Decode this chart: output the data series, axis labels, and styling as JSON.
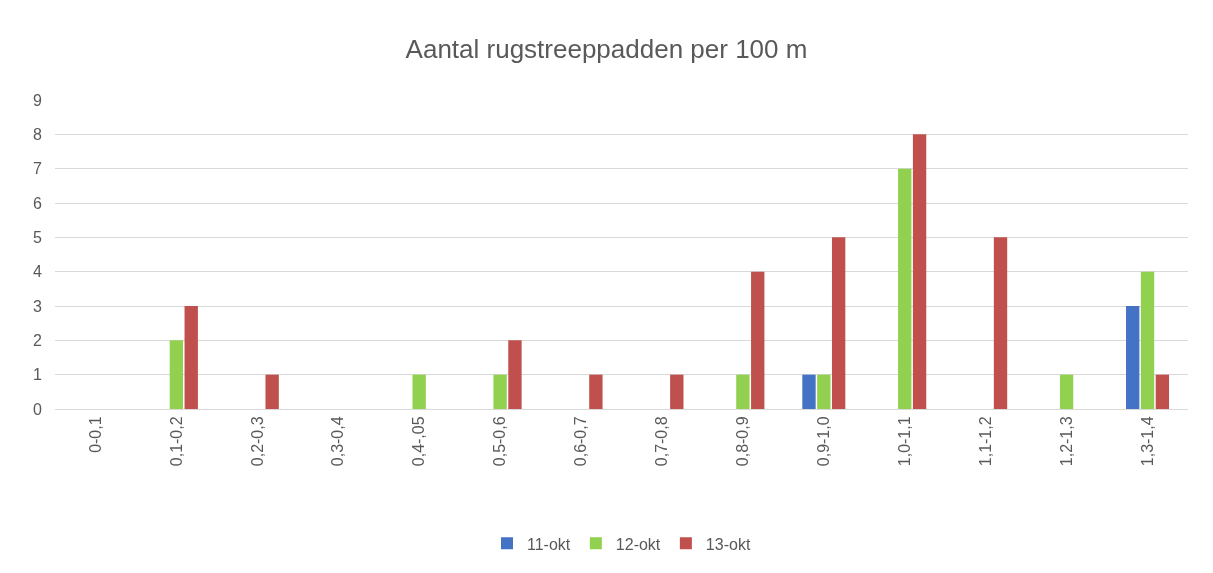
{
  "chart_data": {
    "type": "bar",
    "title": "Aantal rugstreeppadden per 100 m",
    "categories": [
      "0-0,1",
      "0,1-0,2",
      "0,2-0,3",
      "0,3-0,4",
      "0,4-,05",
      "0,5-0,6",
      "0,6-0,7",
      "0,7-0,8",
      "0,8-0,9",
      "0,9-1,0",
      "1,0-1,1",
      "1,1-1,2",
      "1,2-1,3",
      "1,3-1,4"
    ],
    "series": [
      {
        "name": "11-okt",
        "color": "#4472c4",
        "values": [
          null,
          null,
          null,
          null,
          null,
          null,
          null,
          null,
          null,
          1,
          null,
          null,
          null,
          3
        ]
      },
      {
        "name": "12-okt",
        "color": "#92d050",
        "values": [
          null,
          2,
          null,
          null,
          1,
          1,
          null,
          null,
          1,
          1,
          7,
          null,
          1,
          4
        ]
      },
      {
        "name": "13-okt",
        "color": "#c0504d",
        "values": [
          null,
          3,
          1,
          null,
          null,
          2,
          1,
          1,
          4,
          5,
          8,
          5,
          null,
          1
        ]
      }
    ],
    "ylim": [
      0,
      9
    ],
    "yticks": [
      0,
      1,
      2,
      3,
      4,
      5,
      6,
      7,
      8,
      9
    ],
    "grid": "y",
    "legend": "bottom"
  }
}
